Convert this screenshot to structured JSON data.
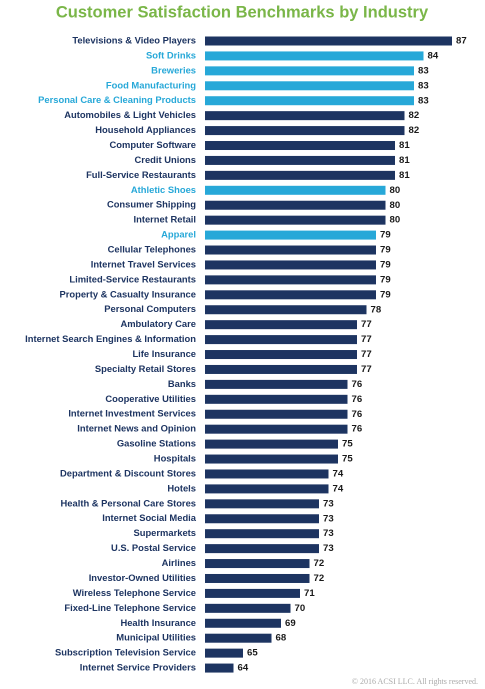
{
  "chart_data": {
    "type": "hbar",
    "title": "Customer Satisfaction Benchmarks by Industry",
    "title_color": "#7ab648",
    "categories": [
      "Televisions & Video Players",
      "Soft Drinks",
      "Breweries",
      "Food Manufacturing",
      "Personal Care & Cleaning Products",
      "Automobiles & Light Vehicles",
      "Household Appliances",
      "Computer Software",
      "Credit Unions",
      "Full-Service Restaurants",
      "Athletic Shoes",
      "Consumer Shipping",
      "Internet Retail",
      "Apparel",
      "Cellular Telephones",
      "Internet Travel Services",
      "Limited-Service Restaurants",
      "Property & Casualty Insurance",
      "Personal Computers",
      "Ambulatory Care",
      "Internet Search Engines & Information",
      "Life Insurance",
      "Specialty Retail Stores",
      "Banks",
      "Cooperative Utilities",
      "Internet Investment Services",
      "Internet News and Opinion",
      "Gasoline Stations",
      "Hospitals",
      "Department & Discount Stores",
      "Hotels",
      "Health & Personal Care Stores",
      "Internet Social Media",
      "Supermarkets",
      "U.S. Postal Service",
      "Airlines",
      "Investor-Owned Utilities",
      "Wireless Telephone Service",
      "Fixed-Line Telephone Service",
      "Health Insurance",
      "Municipal Utilities",
      "Subscription Television Service",
      "Internet Service Providers"
    ],
    "values": [
      87,
      84,
      83,
      83,
      83,
      82,
      82,
      81,
      81,
      81,
      80,
      80,
      80,
      79,
      79,
      79,
      79,
      79,
      78,
      77,
      77,
      77,
      77,
      76,
      76,
      76,
      76,
      75,
      75,
      74,
      74,
      73,
      73,
      73,
      73,
      72,
      72,
      71,
      70,
      69,
      68,
      65,
      64
    ],
    "colors": [
      "#1d3461",
      "#27a8d8",
      "#27a8d8",
      "#27a8d8",
      "#27a8d8",
      "#1d3461",
      "#1d3461",
      "#1d3461",
      "#1d3461",
      "#1d3461",
      "#27a8d8",
      "#1d3461",
      "#1d3461",
      "#27a8d8",
      "#1d3461",
      "#1d3461",
      "#1d3461",
      "#1d3461",
      "#1d3461",
      "#1d3461",
      "#1d3461",
      "#1d3461",
      "#1d3461",
      "#1d3461",
      "#1d3461",
      "#1d3461",
      "#1d3461",
      "#1d3461",
      "#1d3461",
      "#1d3461",
      "#1d3461",
      "#1d3461",
      "#1d3461",
      "#1d3461",
      "#1d3461",
      "#1d3461",
      "#1d3461",
      "#1d3461",
      "#1d3461",
      "#1d3461",
      "#1d3461",
      "#1d3461",
      "#1d3461"
    ],
    "xlim": [
      61,
      87
    ],
    "copyright": "© 2016 ACSI LLC. All rights reserved."
  }
}
